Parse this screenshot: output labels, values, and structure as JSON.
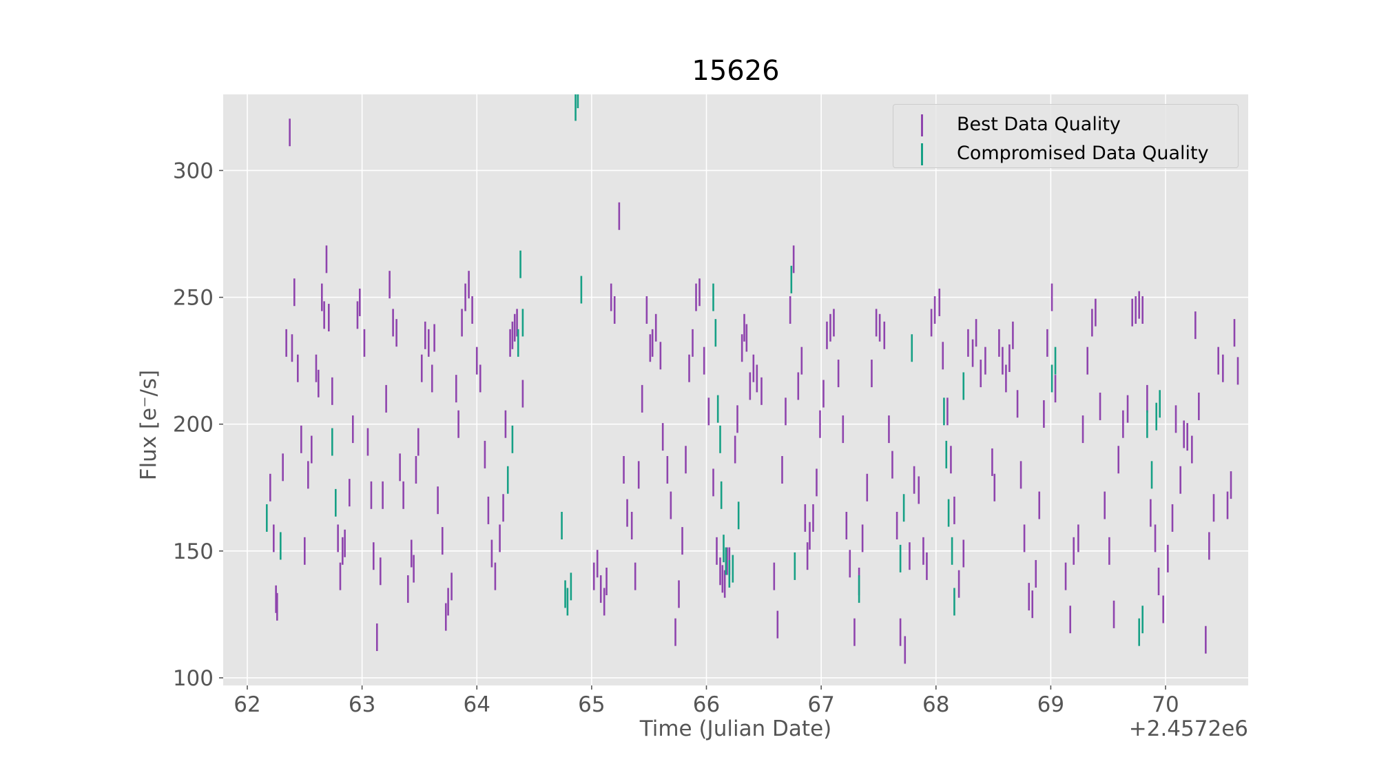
{
  "chart_data": {
    "type": "scatter",
    "title": "15626",
    "xlabel": "Time (Julian Date)",
    "ylabel": "Flux [e⁻/s]",
    "x_offset_label": "+2.4572e6",
    "xlim": [
      61.79,
      70.72
    ],
    "ylim": [
      97,
      330
    ],
    "x_ticks": [
      62,
      63,
      64,
      65,
      66,
      67,
      68,
      69,
      70
    ],
    "y_ticks": [
      100,
      150,
      200,
      250,
      300
    ],
    "grid": true,
    "legend_position": "top-right",
    "series": [
      {
        "name": "Best Data Quality",
        "color": "#8e44ad",
        "points": [
          [
            62.2,
            175
          ],
          [
            62.23,
            155
          ],
          [
            62.25,
            131
          ],
          [
            62.26,
            128
          ],
          [
            62.31,
            183
          ],
          [
            62.34,
            232
          ],
          [
            62.37,
            315
          ],
          [
            62.39,
            230
          ],
          [
            62.41,
            252
          ],
          [
            62.44,
            222
          ],
          [
            62.47,
            194
          ],
          [
            62.5,
            150
          ],
          [
            62.53,
            180
          ],
          [
            62.56,
            190
          ],
          [
            62.6,
            222
          ],
          [
            62.62,
            216
          ],
          [
            62.65,
            250
          ],
          [
            62.67,
            243
          ],
          [
            62.69,
            265
          ],
          [
            62.71,
            242
          ],
          [
            62.74,
            213
          ],
          [
            62.79,
            155
          ],
          [
            62.81,
            140
          ],
          [
            62.83,
            150
          ],
          [
            62.85,
            153
          ],
          [
            62.89,
            173
          ],
          [
            62.92,
            198
          ],
          [
            62.96,
            243
          ],
          [
            62.98,
            248
          ],
          [
            63.02,
            232
          ],
          [
            63.05,
            193
          ],
          [
            63.08,
            172
          ],
          [
            63.1,
            148
          ],
          [
            63.13,
            116
          ],
          [
            63.16,
            142
          ],
          [
            63.18,
            172
          ],
          [
            63.21,
            210
          ],
          [
            63.24,
            255
          ],
          [
            63.27,
            240
          ],
          [
            63.3,
            236
          ],
          [
            63.33,
            183
          ],
          [
            63.36,
            172
          ],
          [
            63.4,
            135
          ],
          [
            63.43,
            149
          ],
          [
            63.45,
            143
          ],
          [
            63.47,
            182
          ],
          [
            63.49,
            193
          ],
          [
            63.52,
            222
          ],
          [
            63.55,
            235
          ],
          [
            63.58,
            232
          ],
          [
            63.61,
            218
          ],
          [
            63.63,
            234
          ],
          [
            63.66,
            170
          ],
          [
            63.7,
            154
          ],
          [
            63.73,
            124
          ],
          [
            63.75,
            130
          ],
          [
            63.78,
            136
          ],
          [
            63.82,
            214
          ],
          [
            63.84,
            200
          ],
          [
            63.87,
            240
          ],
          [
            63.9,
            250
          ],
          [
            63.93,
            255
          ],
          [
            63.96,
            245
          ],
          [
            64.0,
            225
          ],
          [
            64.03,
            218
          ],
          [
            64.07,
            188
          ],
          [
            64.1,
            166
          ],
          [
            64.13,
            149
          ],
          [
            64.16,
            140
          ],
          [
            64.2,
            155
          ],
          [
            64.23,
            167
          ],
          [
            64.25,
            200
          ],
          [
            64.29,
            232
          ],
          [
            64.31,
            235
          ],
          [
            64.33,
            238
          ],
          [
            64.35,
            240
          ],
          [
            64.4,
            212
          ],
          [
            65.02,
            140
          ],
          [
            65.05,
            145
          ],
          [
            65.08,
            135
          ],
          [
            65.11,
            130
          ],
          [
            65.13,
            138
          ],
          [
            65.17,
            250
          ],
          [
            65.2,
            245
          ],
          [
            65.24,
            282
          ],
          [
            65.28,
            182
          ],
          [
            65.31,
            165
          ],
          [
            65.35,
            160
          ],
          [
            65.38,
            140
          ],
          [
            65.41,
            180
          ],
          [
            65.44,
            210
          ],
          [
            65.48,
            245
          ],
          [
            65.51,
            230
          ],
          [
            65.53,
            232
          ],
          [
            65.56,
            238
          ],
          [
            65.6,
            227
          ],
          [
            65.62,
            195
          ],
          [
            65.66,
            182
          ],
          [
            65.69,
            168
          ],
          [
            65.73,
            118
          ],
          [
            65.76,
            133
          ],
          [
            65.79,
            154
          ],
          [
            65.82,
            186
          ],
          [
            65.85,
            222
          ],
          [
            65.88,
            232
          ],
          [
            65.91,
            250
          ],
          [
            65.94,
            252
          ],
          [
            65.98,
            225
          ],
          [
            66.02,
            205
          ],
          [
            66.06,
            177
          ],
          [
            66.09,
            150
          ],
          [
            66.12,
            142
          ],
          [
            66.14,
            139
          ],
          [
            66.16,
            137
          ],
          [
            66.18,
            146
          ],
          [
            66.2,
            146
          ],
          [
            66.25,
            190
          ],
          [
            66.27,
            202
          ],
          [
            66.31,
            230
          ],
          [
            66.33,
            238
          ],
          [
            66.35,
            234
          ],
          [
            66.38,
            215
          ],
          [
            66.41,
            222
          ],
          [
            66.44,
            218
          ],
          [
            66.48,
            213
          ],
          [
            66.59,
            140
          ],
          [
            66.62,
            121
          ],
          [
            66.66,
            182
          ],
          [
            66.69,
            205
          ],
          [
            66.73,
            245
          ],
          [
            66.76,
            265
          ],
          [
            66.8,
            215
          ],
          [
            66.83,
            225
          ],
          [
            66.86,
            163
          ],
          [
            66.88,
            148
          ],
          [
            66.9,
            156
          ],
          [
            66.93,
            163
          ],
          [
            66.96,
            177
          ],
          [
            66.99,
            200
          ],
          [
            67.02,
            212
          ],
          [
            67.05,
            235
          ],
          [
            67.08,
            238
          ],
          [
            67.11,
            240
          ],
          [
            67.15,
            220
          ],
          [
            67.19,
            198
          ],
          [
            67.22,
            160
          ],
          [
            67.25,
            145
          ],
          [
            67.29,
            118
          ],
          [
            67.33,
            138
          ],
          [
            67.36,
            155
          ],
          [
            67.4,
            175
          ],
          [
            67.44,
            220
          ],
          [
            67.48,
            240
          ],
          [
            67.51,
            238
          ],
          [
            67.55,
            235
          ],
          [
            67.59,
            198
          ],
          [
            67.62,
            184
          ],
          [
            67.66,
            160
          ],
          [
            67.69,
            118
          ],
          [
            67.73,
            111
          ],
          [
            67.77,
            148
          ],
          [
            67.81,
            178
          ],
          [
            67.85,
            174
          ],
          [
            67.89,
            150
          ],
          [
            67.92,
            144
          ],
          [
            67.96,
            240
          ],
          [
            67.99,
            245
          ],
          [
            68.03,
            248
          ],
          [
            68.06,
            227
          ],
          [
            68.1,
            205
          ],
          [
            68.13,
            186
          ],
          [
            68.16,
            166
          ],
          [
            68.2,
            137
          ],
          [
            68.24,
            149
          ],
          [
            68.28,
            232
          ],
          [
            68.32,
            228
          ],
          [
            68.35,
            236
          ],
          [
            68.39,
            220
          ],
          [
            68.43,
            225
          ],
          [
            68.49,
            185
          ],
          [
            68.51,
            175
          ],
          [
            68.55,
            232
          ],
          [
            68.58,
            225
          ],
          [
            68.61,
            218
          ],
          [
            68.64,
            226
          ],
          [
            68.67,
            235
          ],
          [
            68.71,
            208
          ],
          [
            68.74,
            180
          ],
          [
            68.77,
            155
          ],
          [
            68.81,
            132
          ],
          [
            68.84,
            129
          ],
          [
            68.87,
            141
          ],
          [
            68.9,
            168
          ],
          [
            68.94,
            204
          ],
          [
            68.97,
            232
          ],
          [
            69.01,
            250
          ],
          [
            69.04,
            214
          ],
          [
            69.13,
            140
          ],
          [
            69.17,
            123
          ],
          [
            69.2,
            150
          ],
          [
            69.24,
            155
          ],
          [
            69.28,
            198
          ],
          [
            69.32,
            225
          ],
          [
            69.36,
            240
          ],
          [
            69.39,
            244
          ],
          [
            69.43,
            207
          ],
          [
            69.47,
            168
          ],
          [
            69.51,
            150
          ],
          [
            69.55,
            125
          ],
          [
            69.59,
            186
          ],
          [
            69.63,
            200
          ],
          [
            69.67,
            206
          ],
          [
            69.71,
            244
          ],
          [
            69.74,
            245
          ],
          [
            69.77,
            247
          ],
          [
            69.8,
            245
          ],
          [
            69.84,
            210
          ],
          [
            69.87,
            165
          ],
          [
            69.91,
            155
          ],
          [
            69.94,
            138
          ],
          [
            69.98,
            127
          ],
          [
            70.02,
            147
          ],
          [
            70.06,
            163
          ],
          [
            70.09,
            202
          ],
          [
            70.13,
            178
          ],
          [
            70.16,
            196
          ],
          [
            70.19,
            195
          ],
          [
            70.23,
            190
          ],
          [
            70.26,
            239
          ],
          [
            70.29,
            207
          ],
          [
            70.35,
            115
          ],
          [
            70.38,
            152
          ],
          [
            70.42,
            167
          ],
          [
            70.46,
            225
          ],
          [
            70.5,
            222
          ],
          [
            70.54,
            168
          ],
          [
            70.57,
            176
          ],
          [
            70.6,
            236
          ],
          [
            70.63,
            221
          ]
        ]
      },
      {
        "name": "Compromised Data Quality",
        "color": "#16a085",
        "points": [
          [
            62.17,
            163
          ],
          [
            62.29,
            152
          ],
          [
            62.74,
            193
          ],
          [
            62.77,
            169
          ],
          [
            64.27,
            178
          ],
          [
            64.31,
            194
          ],
          [
            64.36,
            232
          ],
          [
            64.38,
            263
          ],
          [
            64.4,
            240
          ],
          [
            64.74,
            160
          ],
          [
            64.77,
            133
          ],
          [
            64.79,
            130
          ],
          [
            64.82,
            136
          ],
          [
            64.86,
            325
          ],
          [
            64.88,
            330
          ],
          [
            64.91,
            253
          ],
          [
            66.06,
            250
          ],
          [
            66.08,
            236
          ],
          [
            66.1,
            206
          ],
          [
            66.12,
            194
          ],
          [
            66.13,
            172
          ],
          [
            66.15,
            151
          ],
          [
            66.17,
            146
          ],
          [
            66.2,
            141
          ],
          [
            66.23,
            143
          ],
          [
            66.28,
            164
          ],
          [
            66.74,
            257
          ],
          [
            66.77,
            144
          ],
          [
            67.33,
            135
          ],
          [
            67.69,
            147
          ],
          [
            67.72,
            167
          ],
          [
            67.79,
            230
          ],
          [
            68.07,
            205
          ],
          [
            68.09,
            188
          ],
          [
            68.11,
            165
          ],
          [
            68.14,
            150
          ],
          [
            68.16,
            130
          ],
          [
            68.24,
            215
          ],
          [
            69.01,
            218
          ],
          [
            69.04,
            225
          ],
          [
            69.77,
            118
          ],
          [
            69.8,
            123
          ],
          [
            69.84,
            200
          ],
          [
            69.88,
            180
          ],
          [
            69.92,
            203
          ],
          [
            69.95,
            208
          ]
        ]
      }
    ]
  }
}
